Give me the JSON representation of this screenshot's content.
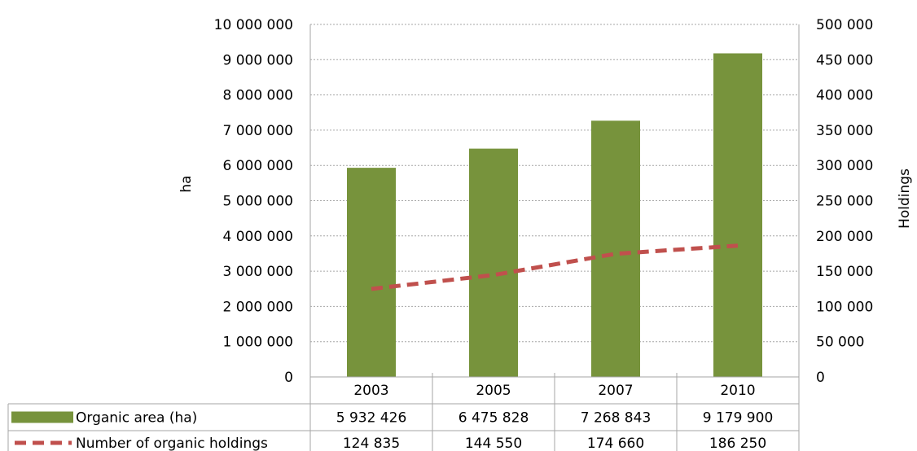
{
  "chart_data": {
    "type": "bar",
    "categories": [
      "2003",
      "2005",
      "2007",
      "2010"
    ],
    "series": [
      {
        "name": "Organic area (ha)",
        "type": "bar",
        "axis": "left",
        "color": "#77933c",
        "values": [
          5932426,
          6475828,
          7268843,
          9179900
        ]
      },
      {
        "name": "Number of organic holdings",
        "type": "line",
        "axis": "right",
        "color": "#c0504d",
        "line_style": "dashed",
        "values": [
          124835,
          144550,
          174660,
          186250
        ]
      }
    ],
    "ylabel": "ha",
    "y2label": "Holdings",
    "ylim": [
      0,
      10000000
    ],
    "y2lim": [
      0,
      500000
    ],
    "yticks": [
      "0",
      "1 000 000",
      "2 000 000",
      "3 000 000",
      "4 000 000",
      "5 000 000",
      "6 000 000",
      "7 000 000",
      "8 000 000",
      "9 000 000",
      "10 000 000"
    ],
    "y2ticks": [
      "0",
      "50 000",
      "100 000",
      "150 000",
      "200 000",
      "250 000",
      "300 000",
      "350 000",
      "400 000",
      "450 000",
      "500 000"
    ],
    "data_table": {
      "rows": [
        {
          "label": "Organic area (ha)",
          "cells": [
            "5 932 426",
            "6 475 828",
            "7 268 843",
            "9 179 900"
          ]
        },
        {
          "label": "Number of organic holdings",
          "cells": [
            "124 835",
            "144 550",
            "174 660",
            "186 250"
          ]
        }
      ]
    },
    "grid": true,
    "legend": "data-table"
  }
}
